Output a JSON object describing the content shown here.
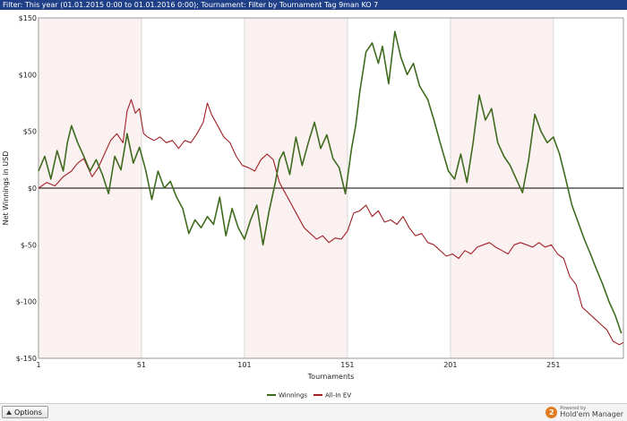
{
  "filter": {
    "text": "Filter:  This year (01.01.2015 0:00 to 01.01.2016 0:00);  Tournament: Filter by Tournament Tag  9man KO 7"
  },
  "bottom": {
    "options_label": "Options",
    "powered_small": "Powered by",
    "brand": "Hold'em Manager"
  },
  "chart_data": {
    "type": "line",
    "title": "",
    "xlabel": "Tournaments",
    "ylabel": "Net Winnings in USD",
    "xlim": [
      1,
      285
    ],
    "ylim": [
      -150,
      150
    ],
    "x_ticks": [
      1,
      51,
      101,
      151,
      201,
      251
    ],
    "y_ticks": [
      150,
      100,
      50,
      0,
      -50,
      -100,
      -150
    ],
    "y_tick_labels": [
      "$150",
      "$100",
      "$50",
      "$0",
      "$-50",
      "$-100",
      "$-150"
    ],
    "legend_position": "bottom",
    "grid": "vertical",
    "shaded_bands": [
      [
        1,
        51
      ],
      [
        101,
        151
      ],
      [
        201,
        251
      ]
    ],
    "series": [
      {
        "name": "Winnings",
        "color": "#3f6b1f",
        "points": [
          [
            1,
            15
          ],
          [
            4,
            28
          ],
          [
            7,
            8
          ],
          [
            10,
            33
          ],
          [
            13,
            15
          ],
          [
            15,
            40
          ],
          [
            17,
            55
          ],
          [
            20,
            40
          ],
          [
            23,
            28
          ],
          [
            26,
            15
          ],
          [
            29,
            25
          ],
          [
            32,
            12
          ],
          [
            35,
            -5
          ],
          [
            38,
            28
          ],
          [
            41,
            16
          ],
          [
            44,
            48
          ],
          [
            47,
            22
          ],
          [
            50,
            36
          ],
          [
            53,
            16
          ],
          [
            56,
            -10
          ],
          [
            59,
            15
          ],
          [
            62,
            0
          ],
          [
            65,
            6
          ],
          [
            68,
            -8
          ],
          [
            71,
            -18
          ],
          [
            74,
            -40
          ],
          [
            77,
            -28
          ],
          [
            80,
            -35
          ],
          [
            83,
            -25
          ],
          [
            86,
            -32
          ],
          [
            89,
            -8
          ],
          [
            92,
            -42
          ],
          [
            95,
            -18
          ],
          [
            98,
            -35
          ],
          [
            101,
            -45
          ],
          [
            104,
            -28
          ],
          [
            107,
            -15
          ],
          [
            110,
            -50
          ],
          [
            113,
            -20
          ],
          [
            116,
            5
          ],
          [
            118,
            25
          ],
          [
            120,
            32
          ],
          [
            123,
            12
          ],
          [
            126,
            45
          ],
          [
            129,
            20
          ],
          [
            132,
            40
          ],
          [
            135,
            58
          ],
          [
            138,
            35
          ],
          [
            141,
            47
          ],
          [
            144,
            26
          ],
          [
            147,
            18
          ],
          [
            150,
            -5
          ],
          [
            153,
            35
          ],
          [
            155,
            55
          ],
          [
            157,
            85
          ],
          [
            160,
            120
          ],
          [
            163,
            128
          ],
          [
            166,
            110
          ],
          [
            168,
            125
          ],
          [
            171,
            92
          ],
          [
            174,
            138
          ],
          [
            177,
            115
          ],
          [
            180,
            100
          ],
          [
            183,
            110
          ],
          [
            186,
            90
          ],
          [
            190,
            78
          ],
          [
            193,
            60
          ],
          [
            196,
            40
          ],
          [
            200,
            15
          ],
          [
            203,
            8
          ],
          [
            206,
            30
          ],
          [
            209,
            5
          ],
          [
            212,
            40
          ],
          [
            215,
            82
          ],
          [
            218,
            60
          ],
          [
            221,
            70
          ],
          [
            224,
            40
          ],
          [
            227,
            28
          ],
          [
            230,
            20
          ],
          [
            233,
            8
          ],
          [
            236,
            -4
          ],
          [
            239,
            25
          ],
          [
            242,
            65
          ],
          [
            245,
            50
          ],
          [
            248,
            40
          ],
          [
            251,
            45
          ],
          [
            254,
            30
          ],
          [
            257,
            8
          ],
          [
            260,
            -15
          ],
          [
            263,
            -30
          ],
          [
            266,
            -45
          ],
          [
            269,
            -58
          ],
          [
            272,
            -72
          ],
          [
            275,
            -85
          ],
          [
            278,
            -100
          ],
          [
            281,
            -112
          ],
          [
            284,
            -128
          ]
        ]
      },
      {
        "name": "All-In EV",
        "color": "#a02026",
        "points": [
          [
            1,
            0
          ],
          [
            5,
            5
          ],
          [
            9,
            2
          ],
          [
            13,
            10
          ],
          [
            17,
            15
          ],
          [
            20,
            22
          ],
          [
            23,
            26
          ],
          [
            27,
            10
          ],
          [
            30,
            18
          ],
          [
            33,
            30
          ],
          [
            36,
            42
          ],
          [
            39,
            48
          ],
          [
            42,
            40
          ],
          [
            44,
            68
          ],
          [
            46,
            78
          ],
          [
            48,
            66
          ],
          [
            50,
            70
          ],
          [
            52,
            48
          ],
          [
            54,
            45
          ],
          [
            57,
            42
          ],
          [
            60,
            45
          ],
          [
            63,
            40
          ],
          [
            66,
            42
          ],
          [
            69,
            35
          ],
          [
            72,
            42
          ],
          [
            75,
            40
          ],
          [
            78,
            48
          ],
          [
            81,
            58
          ],
          [
            83,
            75
          ],
          [
            85,
            65
          ],
          [
            88,
            55
          ],
          [
            91,
            45
          ],
          [
            94,
            40
          ],
          [
            97,
            28
          ],
          [
            100,
            20
          ],
          [
            103,
            18
          ],
          [
            106,
            15
          ],
          [
            109,
            25
          ],
          [
            112,
            30
          ],
          [
            115,
            25
          ],
          [
            118,
            5
          ],
          [
            121,
            -5
          ],
          [
            124,
            -15
          ],
          [
            127,
            -25
          ],
          [
            130,
            -35
          ],
          [
            133,
            -40
          ],
          [
            136,
            -45
          ],
          [
            139,
            -42
          ],
          [
            142,
            -48
          ],
          [
            145,
            -44
          ],
          [
            148,
            -45
          ],
          [
            151,
            -38
          ],
          [
            154,
            -22
          ],
          [
            157,
            -20
          ],
          [
            160,
            -15
          ],
          [
            163,
            -25
          ],
          [
            166,
            -20
          ],
          [
            169,
            -30
          ],
          [
            172,
            -28
          ],
          [
            175,
            -32
          ],
          [
            178,
            -25
          ],
          [
            181,
            -35
          ],
          [
            184,
            -42
          ],
          [
            187,
            -40
          ],
          [
            190,
            -48
          ],
          [
            193,
            -50
          ],
          [
            196,
            -55
          ],
          [
            199,
            -60
          ],
          [
            202,
            -58
          ],
          [
            205,
            -62
          ],
          [
            208,
            -55
          ],
          [
            211,
            -58
          ],
          [
            214,
            -52
          ],
          [
            217,
            -50
          ],
          [
            220,
            -48
          ],
          [
            223,
            -52
          ],
          [
            226,
            -55
          ],
          [
            229,
            -58
          ],
          [
            232,
            -50
          ],
          [
            235,
            -48
          ],
          [
            238,
            -50
          ],
          [
            241,
            -52
          ],
          [
            244,
            -48
          ],
          [
            247,
            -52
          ],
          [
            250,
            -50
          ],
          [
            253,
            -58
          ],
          [
            256,
            -62
          ],
          [
            259,
            -78
          ],
          [
            262,
            -85
          ],
          [
            265,
            -105
          ],
          [
            268,
            -110
          ],
          [
            271,
            -115
          ],
          [
            274,
            -120
          ],
          [
            277,
            -125
          ],
          [
            280,
            -135
          ],
          [
            283,
            -138
          ],
          [
            285,
            -136
          ]
        ]
      }
    ]
  }
}
